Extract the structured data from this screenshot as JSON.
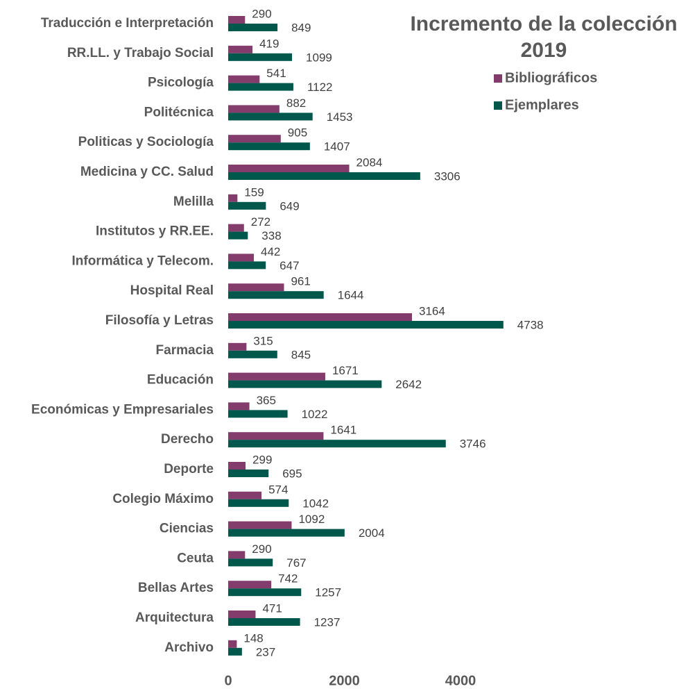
{
  "chart_data": {
    "type": "bar",
    "orientation": "horizontal",
    "title": "Incremento de la colección 2019",
    "categories": [
      "Traducción e Interpretación",
      "RR.LL. y Trabajo Social",
      "Psicología",
      "Politécnica",
      "Politicas y Sociología",
      "Medicina y CC. Salud",
      "Melilla",
      "Institutos y RR.EE.",
      "Informática y Telecom.",
      "Hospital Real",
      "Filosofía y Letras",
      "Farmacia",
      "Educación",
      "Económicas y Empresariales",
      "Derecho",
      "Deporte",
      "Colegio Máximo",
      "Ciencias",
      "Ceuta",
      "Bellas Artes",
      "Arquitectura",
      "Archivo"
    ],
    "series": [
      {
        "name": "Bibliográficos",
        "color": "#843c6c",
        "values": [
          290,
          419,
          541,
          882,
          905,
          2084,
          159,
          272,
          442,
          961,
          3164,
          315,
          1671,
          365,
          1641,
          299,
          574,
          1092,
          290,
          742,
          471,
          148
        ]
      },
      {
        "name": "Ejemplares",
        "color": "#00574b",
        "values": [
          849,
          1099,
          1122,
          1453,
          1407,
          3306,
          649,
          338,
          647,
          1644,
          4738,
          845,
          2642,
          1022,
          3746,
          695,
          1042,
          2004,
          767,
          1257,
          1237,
          237
        ]
      }
    ],
    "xlim": [
      0,
      5000
    ],
    "xticks": [
      0,
      2000,
      4000
    ],
    "grid": false,
    "legend": "upper right"
  }
}
